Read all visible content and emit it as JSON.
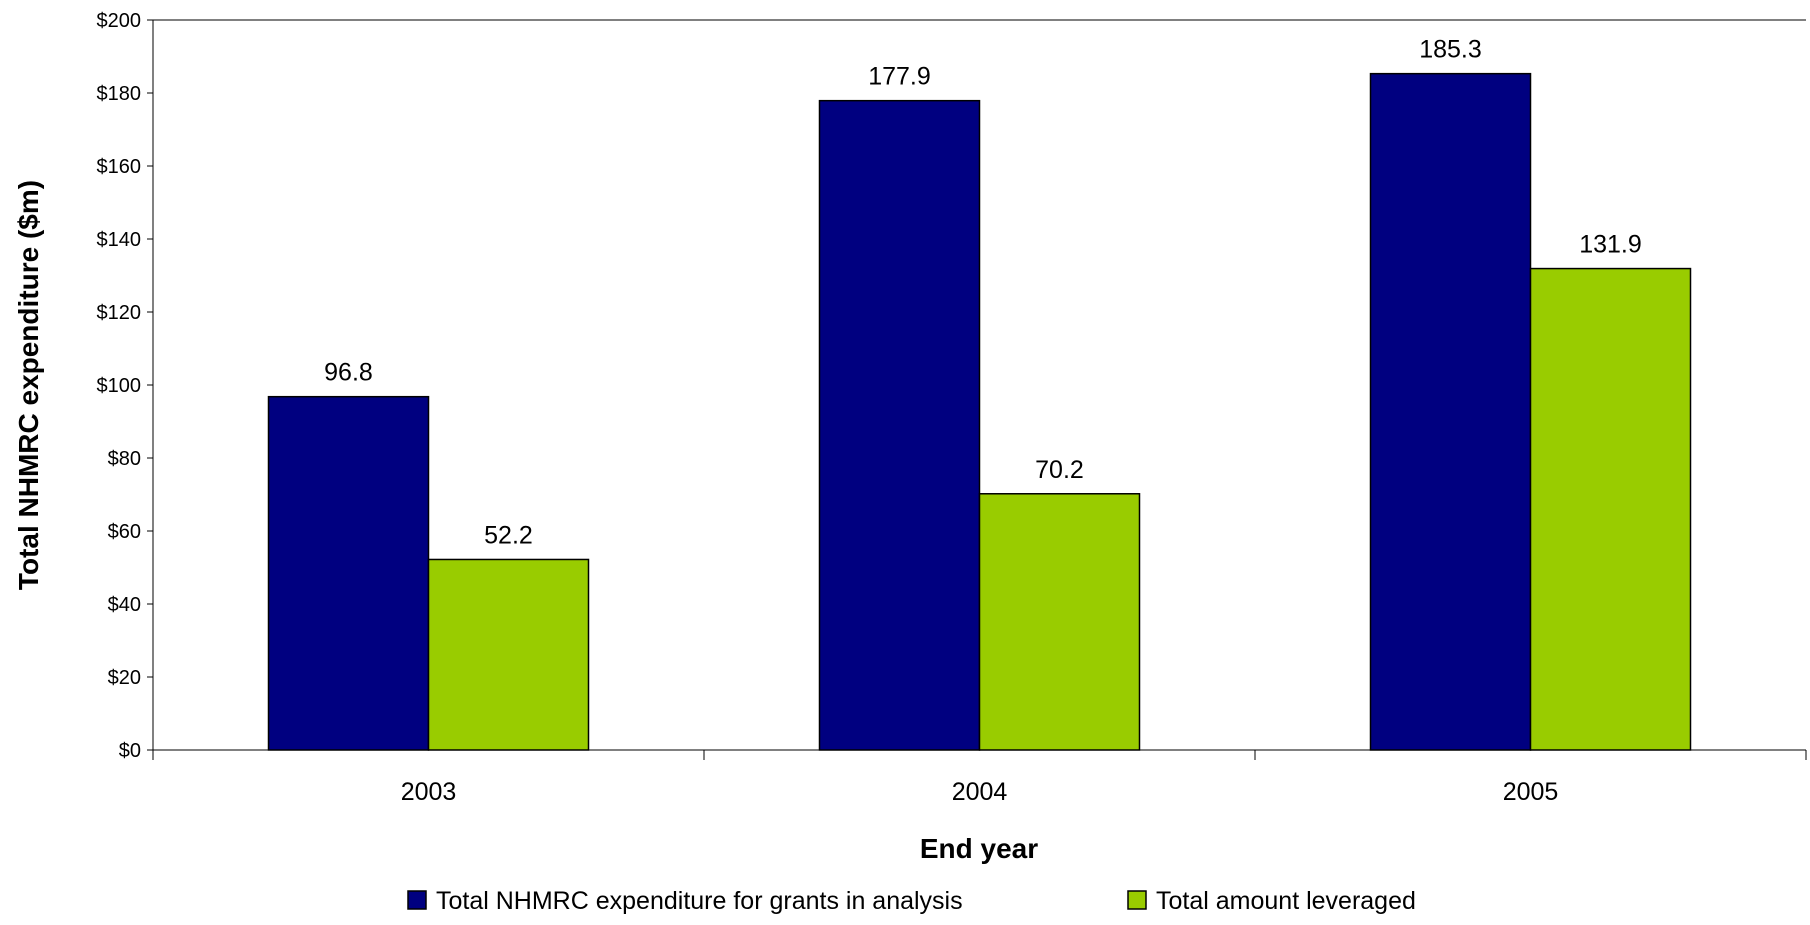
{
  "chart_data": {
    "type": "bar",
    "title": "",
    "xlabel": "End year",
    "ylabel": "Total NHMRC expenditure ($m)",
    "ylim": [
      0,
      200
    ],
    "ytick_step": 20,
    "ytick_prefix": "$",
    "categories": [
      "2003",
      "2004",
      "2005"
    ],
    "series": [
      {
        "name": "Total NHMRC expenditure for grants in analysis",
        "color": "#000080",
        "values": [
          96.8,
          177.9,
          185.3
        ],
        "labels": [
          "96.8",
          "177.9",
          "185.3"
        ]
      },
      {
        "name": "Total amount leveraged",
        "color": "#99CC00",
        "values": [
          52.2,
          70.2,
          131.9
        ],
        "labels": [
          "52.2",
          "70.2",
          "131.9"
        ]
      }
    ],
    "grid": false,
    "legend_position": "bottom"
  }
}
